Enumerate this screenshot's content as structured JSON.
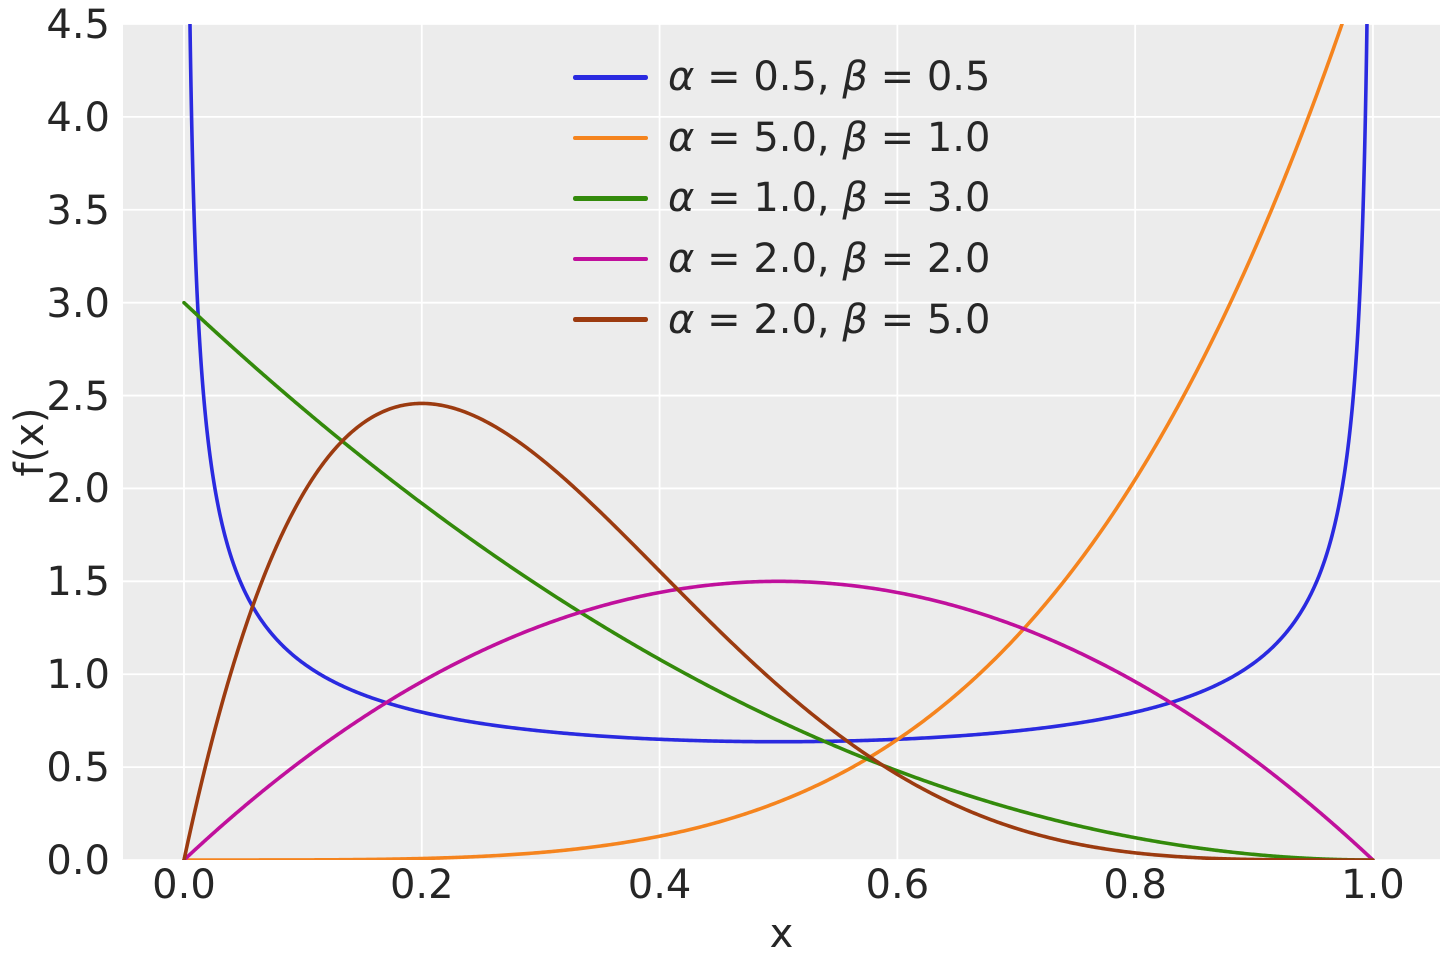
{
  "chart_data": {
    "type": "line",
    "title": "",
    "xlabel": "x",
    "ylabel": "f(x)",
    "xlim": [
      -0.0513,
      1.0564
    ],
    "ylim": [
      0,
      4.5
    ],
    "x_ticks": [
      0.0,
      0.2,
      0.4,
      0.6,
      0.8,
      1.0
    ],
    "x_tick_labels": [
      "0.0",
      "0.2",
      "0.4",
      "0.6",
      "0.8",
      "1.0"
    ],
    "y_ticks": [
      0.0,
      0.5,
      1.0,
      1.5,
      2.0,
      2.5,
      3.0,
      3.5,
      4.0,
      4.5
    ],
    "y_tick_labels": [
      "0.0",
      "0.5",
      "1.0",
      "1.5",
      "2.0",
      "2.5",
      "3.0",
      "3.5",
      "4.0",
      "4.5"
    ],
    "grid": true,
    "grid_color": "#ffffff",
    "plot_background": "#ececec",
    "text_color": "#262626",
    "legend_position": "upper center",
    "legend_frame": false,
    "distribution": "Beta probability density function",
    "sample_x": [
      0.0,
      0.05,
      0.1,
      0.15,
      0.2,
      0.25,
      0.3,
      0.35,
      0.4,
      0.45,
      0.5,
      0.55,
      0.6,
      0.65,
      0.7,
      0.75,
      0.8,
      0.85,
      0.9,
      0.95,
      1.0
    ],
    "series": [
      {
        "label": "α = 0.5, β = 0.5",
        "alpha": 0.5,
        "beta": 0.5,
        "color": "#2a2ae0",
        "sample_y": [
          null,
          1.4605,
          1.061,
          0.8914,
          0.7958,
          0.7351,
          0.6946,
          0.6674,
          0.6497,
          0.6398,
          0.6366,
          0.6398,
          0.6497,
          0.6674,
          0.6946,
          0.7351,
          0.7958,
          0.8914,
          1.061,
          1.4605,
          null
        ]
      },
      {
        "label": "α = 5.0, β = 1.0",
        "alpha": 5.0,
        "beta": 1.0,
        "color": "#f5841e",
        "sample_y": [
          0,
          0.0,
          0.0005,
          0.0025,
          0.008,
          0.0195,
          0.0405,
          0.075,
          0.128,
          0.205,
          0.3125,
          0.4575,
          0.648,
          0.8925,
          1.2005,
          1.582,
          2.048,
          2.61,
          3.2805,
          4.0725,
          5.0
        ]
      },
      {
        "label": "α = 1.0, β = 3.0",
        "alpha": 1.0,
        "beta": 3.0,
        "color": "#338a0b",
        "sample_y": [
          3.0,
          2.7075,
          2.43,
          2.1675,
          1.92,
          1.6875,
          1.47,
          1.2675,
          1.08,
          0.9075,
          0.75,
          0.6075,
          0.48,
          0.3675,
          0.27,
          0.1875,
          0.12,
          0.0675,
          0.03,
          0.0075,
          0
        ]
      },
      {
        "label": "α = 2.0, β = 2.0",
        "alpha": 2.0,
        "beta": 2.0,
        "color": "#c0109c",
        "sample_y": [
          0,
          0.285,
          0.54,
          0.765,
          0.96,
          1.125,
          1.26,
          1.365,
          1.44,
          1.485,
          1.5,
          1.485,
          1.44,
          1.365,
          1.26,
          1.125,
          0.96,
          0.765,
          0.54,
          0.285,
          0
        ]
      },
      {
        "label": "α = 2.0, β = 5.0",
        "alpha": 2.0,
        "beta": 5.0,
        "color": "#9c3b10",
        "sample_y": [
          0,
          1.2218,
          1.9683,
          2.349,
          2.4576,
          2.373,
          2.1609,
          1.8743,
          1.5552,
          1.2353,
          0.9375,
          0.6766,
          0.4608,
          0.2926,
          0.1701,
          0.0879,
          0.0384,
          0.0129,
          0.0027,
          0.0002,
          0
        ]
      }
    ]
  }
}
